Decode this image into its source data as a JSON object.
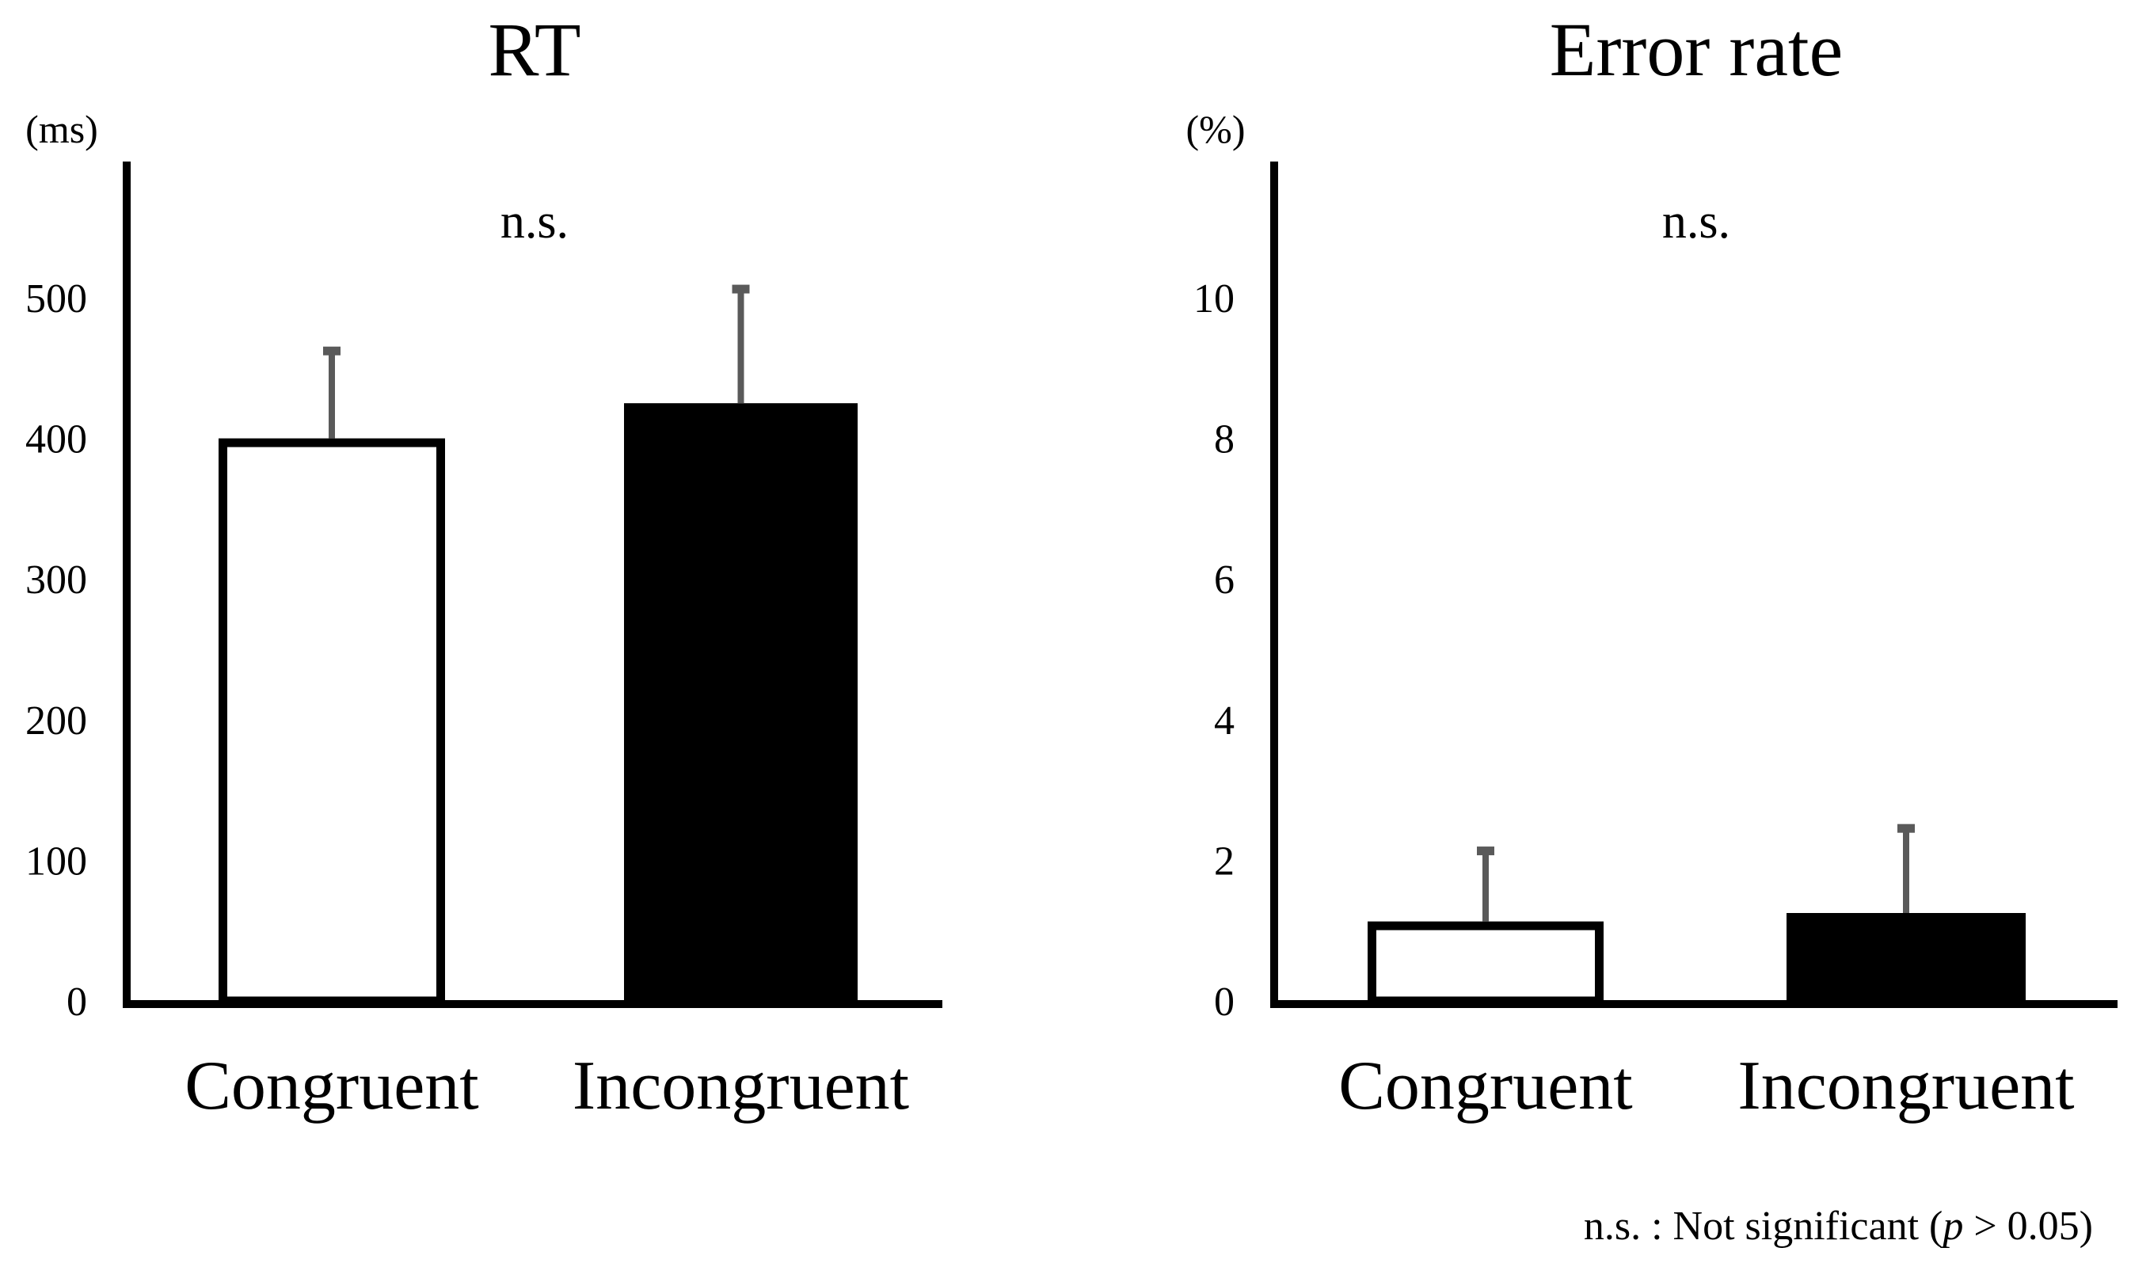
{
  "chart_data": [
    {
      "type": "bar",
      "title": "RT",
      "ylabel": "(ms)",
      "categories": [
        "Congruent",
        "Incongruent"
      ],
      "values": [
        400,
        425
      ],
      "error_upper": [
        463,
        507
      ],
      "bar_fill": [
        "#ffffff",
        "#000000"
      ],
      "ylim": [
        0,
        500
      ],
      "yticks": [
        0,
        100,
        200,
        300,
        400,
        500
      ],
      "annotation": "n.s.",
      "grid": false
    },
    {
      "type": "bar",
      "title": "Error rate",
      "ylabel": "(%)",
      "categories": [
        "Congruent",
        "Incongruent"
      ],
      "values": [
        1.13,
        1.25
      ],
      "error_upper": [
        2.15,
        2.47
      ],
      "bar_fill": [
        "#ffffff",
        "#000000"
      ],
      "ylim": [
        0,
        10
      ],
      "yticks": [
        0,
        2,
        4,
        6,
        8,
        10
      ],
      "annotation": "n.s.",
      "grid": false
    }
  ],
  "footnote": {
    "prefix": "n.s. : Not significant (",
    "p": "p",
    "suffix": " > 0.05)"
  },
  "colors": {
    "axis": "#000000",
    "error_bar": "#5a5a5a"
  }
}
